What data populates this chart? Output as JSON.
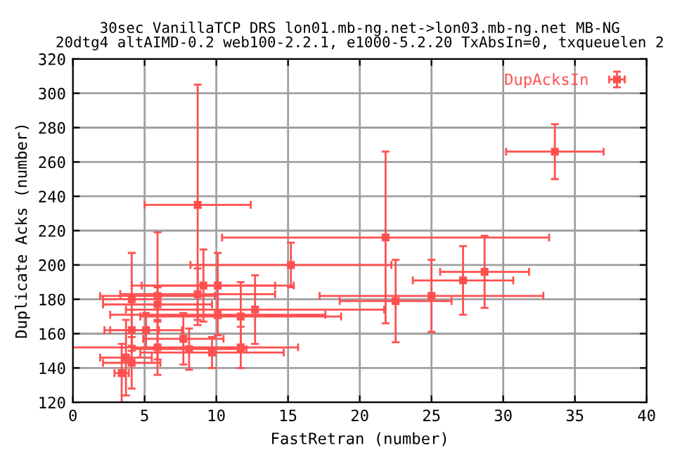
{
  "chart_data": {
    "type": "scatter",
    "title": "30sec VanillaTCP DRS lon01.mb-ng.net->lon03.mb-ng.net MB-NG\n20dtg4 altAIMD-0.2 web100-2.2.1, e1000-5.2.20 TxAbsIn=0, txqueuelen 2",
    "xlabel": "FastRetran (number)",
    "ylabel": "Duplicate Acks (number)",
    "xlim": [
      0,
      40
    ],
    "ylim": [
      120,
      320
    ],
    "xticks": [
      0,
      5,
      10,
      15,
      20,
      25,
      30,
      35,
      40
    ],
    "yticks": [
      120,
      140,
      160,
      180,
      200,
      220,
      240,
      260,
      280,
      300,
      320
    ],
    "grid": true,
    "legend": "top right",
    "marker": "square",
    "series": [
      {
        "name": "DupAcksIn",
        "color": "#ff5050",
        "x": [
          8.7,
          33.6,
          21.8,
          28.7,
          27.2,
          25.0,
          22.5,
          15.2,
          12.7,
          11.7,
          10.1,
          9.1,
          8.7,
          10.1,
          11.7,
          9.7,
          8.1,
          7.7,
          5.9,
          4.1,
          5.9,
          4.1,
          5.1,
          5.9,
          3.7,
          4.1,
          3.4
        ],
        "values": [
          235,
          266,
          216,
          196,
          191,
          182,
          179,
          200,
          174,
          170,
          188,
          188,
          183,
          171,
          152,
          149,
          151,
          157,
          182,
          180,
          177,
          162,
          162,
          152,
          146,
          143,
          137
        ],
        "xerrors": [
          3.7,
          3.4,
          11.4,
          3.1,
          3.5,
          7.8,
          3.9,
          7,
          9,
          7,
          5.3,
          5,
          5.4,
          7.5,
          4,
          5,
          4,
          2.8,
          4,
          2,
          3.8,
          1.9,
          2.5,
          6,
          1.8,
          2,
          0.5
        ],
        "errors": [
          70,
          16,
          50,
          21,
          20,
          21,
          24,
          13,
          20,
          20,
          19,
          21,
          15,
          12,
          12,
          9,
          12,
          15,
          37,
          27,
          10,
          12,
          10,
          16,
          22,
          15,
          17
        ]
      }
    ]
  }
}
